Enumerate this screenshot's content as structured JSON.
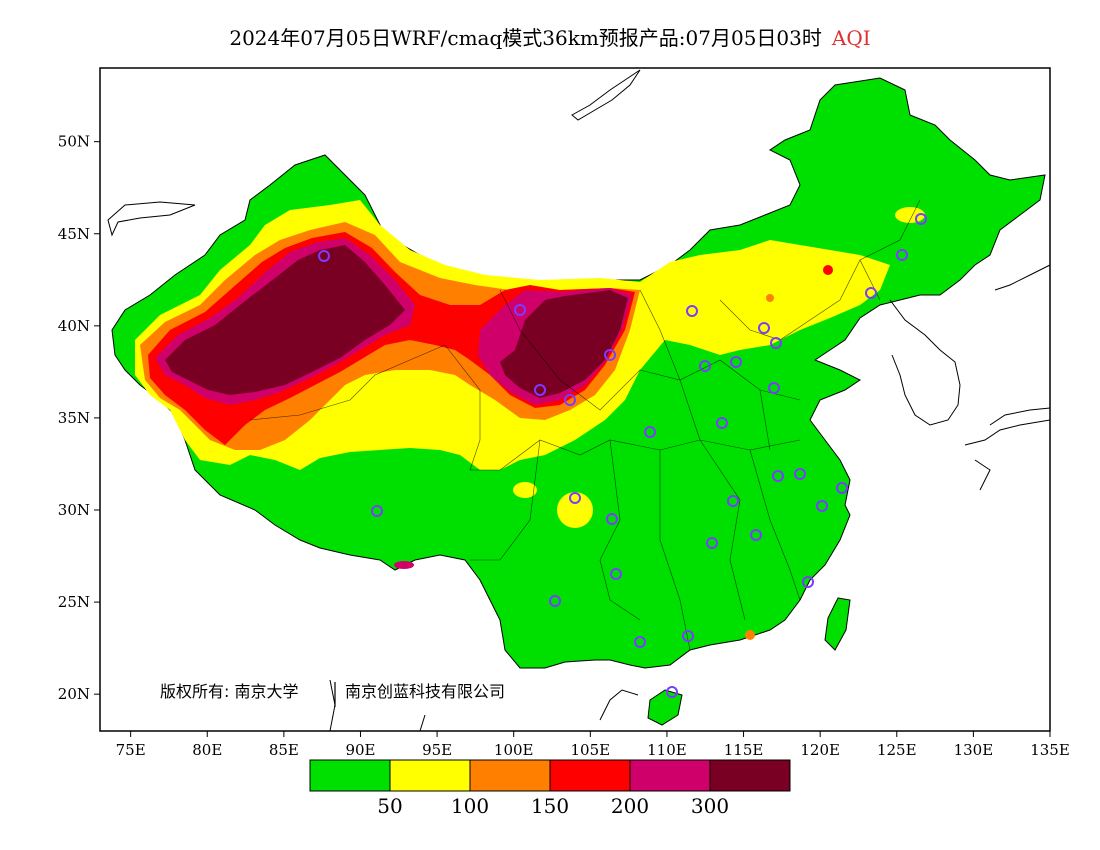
{
  "title": {
    "main": "2024年07月05日WRF/cmaq模式36km预报产品:07月05日03时",
    "variable": "AQI"
  },
  "map": {
    "lon_range": [
      73,
      135
    ],
    "lat_range": [
      18,
      54
    ],
    "lon_ticks": [
      "75E",
      "80E",
      "85E",
      "90E",
      "95E",
      "100E",
      "105E",
      "110E",
      "115E",
      "120E",
      "125E",
      "130E",
      "135E"
    ],
    "lat_ticks": [
      "20N",
      "25N",
      "30N",
      "35N",
      "40N",
      "45N",
      "50N"
    ],
    "copyright": "版权所有: 南京大学",
    "copyright2": "南京创蓝科技有限公司"
  },
  "legend": {
    "colors": [
      "#00e000",
      "#ffff00",
      "#ff8000",
      "#ff0000",
      "#d0006a",
      "#7a0023"
    ],
    "labels": [
      "50",
      "100",
      "150",
      "200",
      "300"
    ]
  },
  "city_colors": {
    "marker": "#7a3cff"
  }
}
